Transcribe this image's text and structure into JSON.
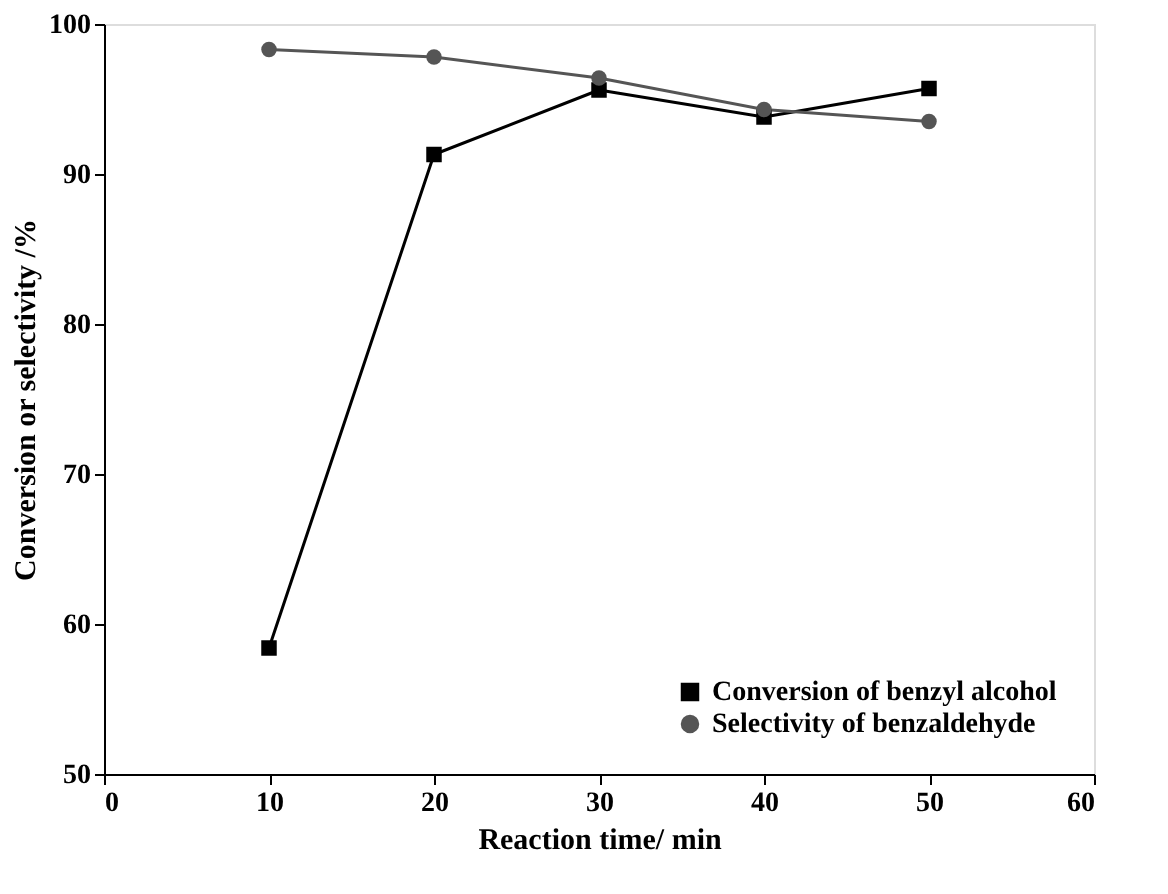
{
  "chart_data": {
    "type": "line",
    "xlabel": "Reaction time/ min",
    "ylabel": "Conversion or selectivity /%",
    "x": [
      10,
      20,
      30,
      40,
      50
    ],
    "series": [
      {
        "name": "Conversion of benzyl alcohol",
        "color": "#000000",
        "marker": "square",
        "values": [
          58.4,
          91.3,
          95.6,
          93.8,
          95.7
        ]
      },
      {
        "name": "Selectivity of benzaldehyde",
        "color": "#555555",
        "marker": "circle",
        "values": [
          98.3,
          97.8,
          96.4,
          94.3,
          93.5
        ]
      }
    ],
    "xlim": [
      0,
      60
    ],
    "xticks": [
      0,
      10,
      20,
      30,
      40,
      50,
      60
    ],
    "ylim": [
      50,
      100
    ],
    "yticks": [
      50,
      60,
      70,
      80,
      90,
      100
    ],
    "grid": false,
    "legend": "bottom right",
    "line_style": "solid"
  }
}
